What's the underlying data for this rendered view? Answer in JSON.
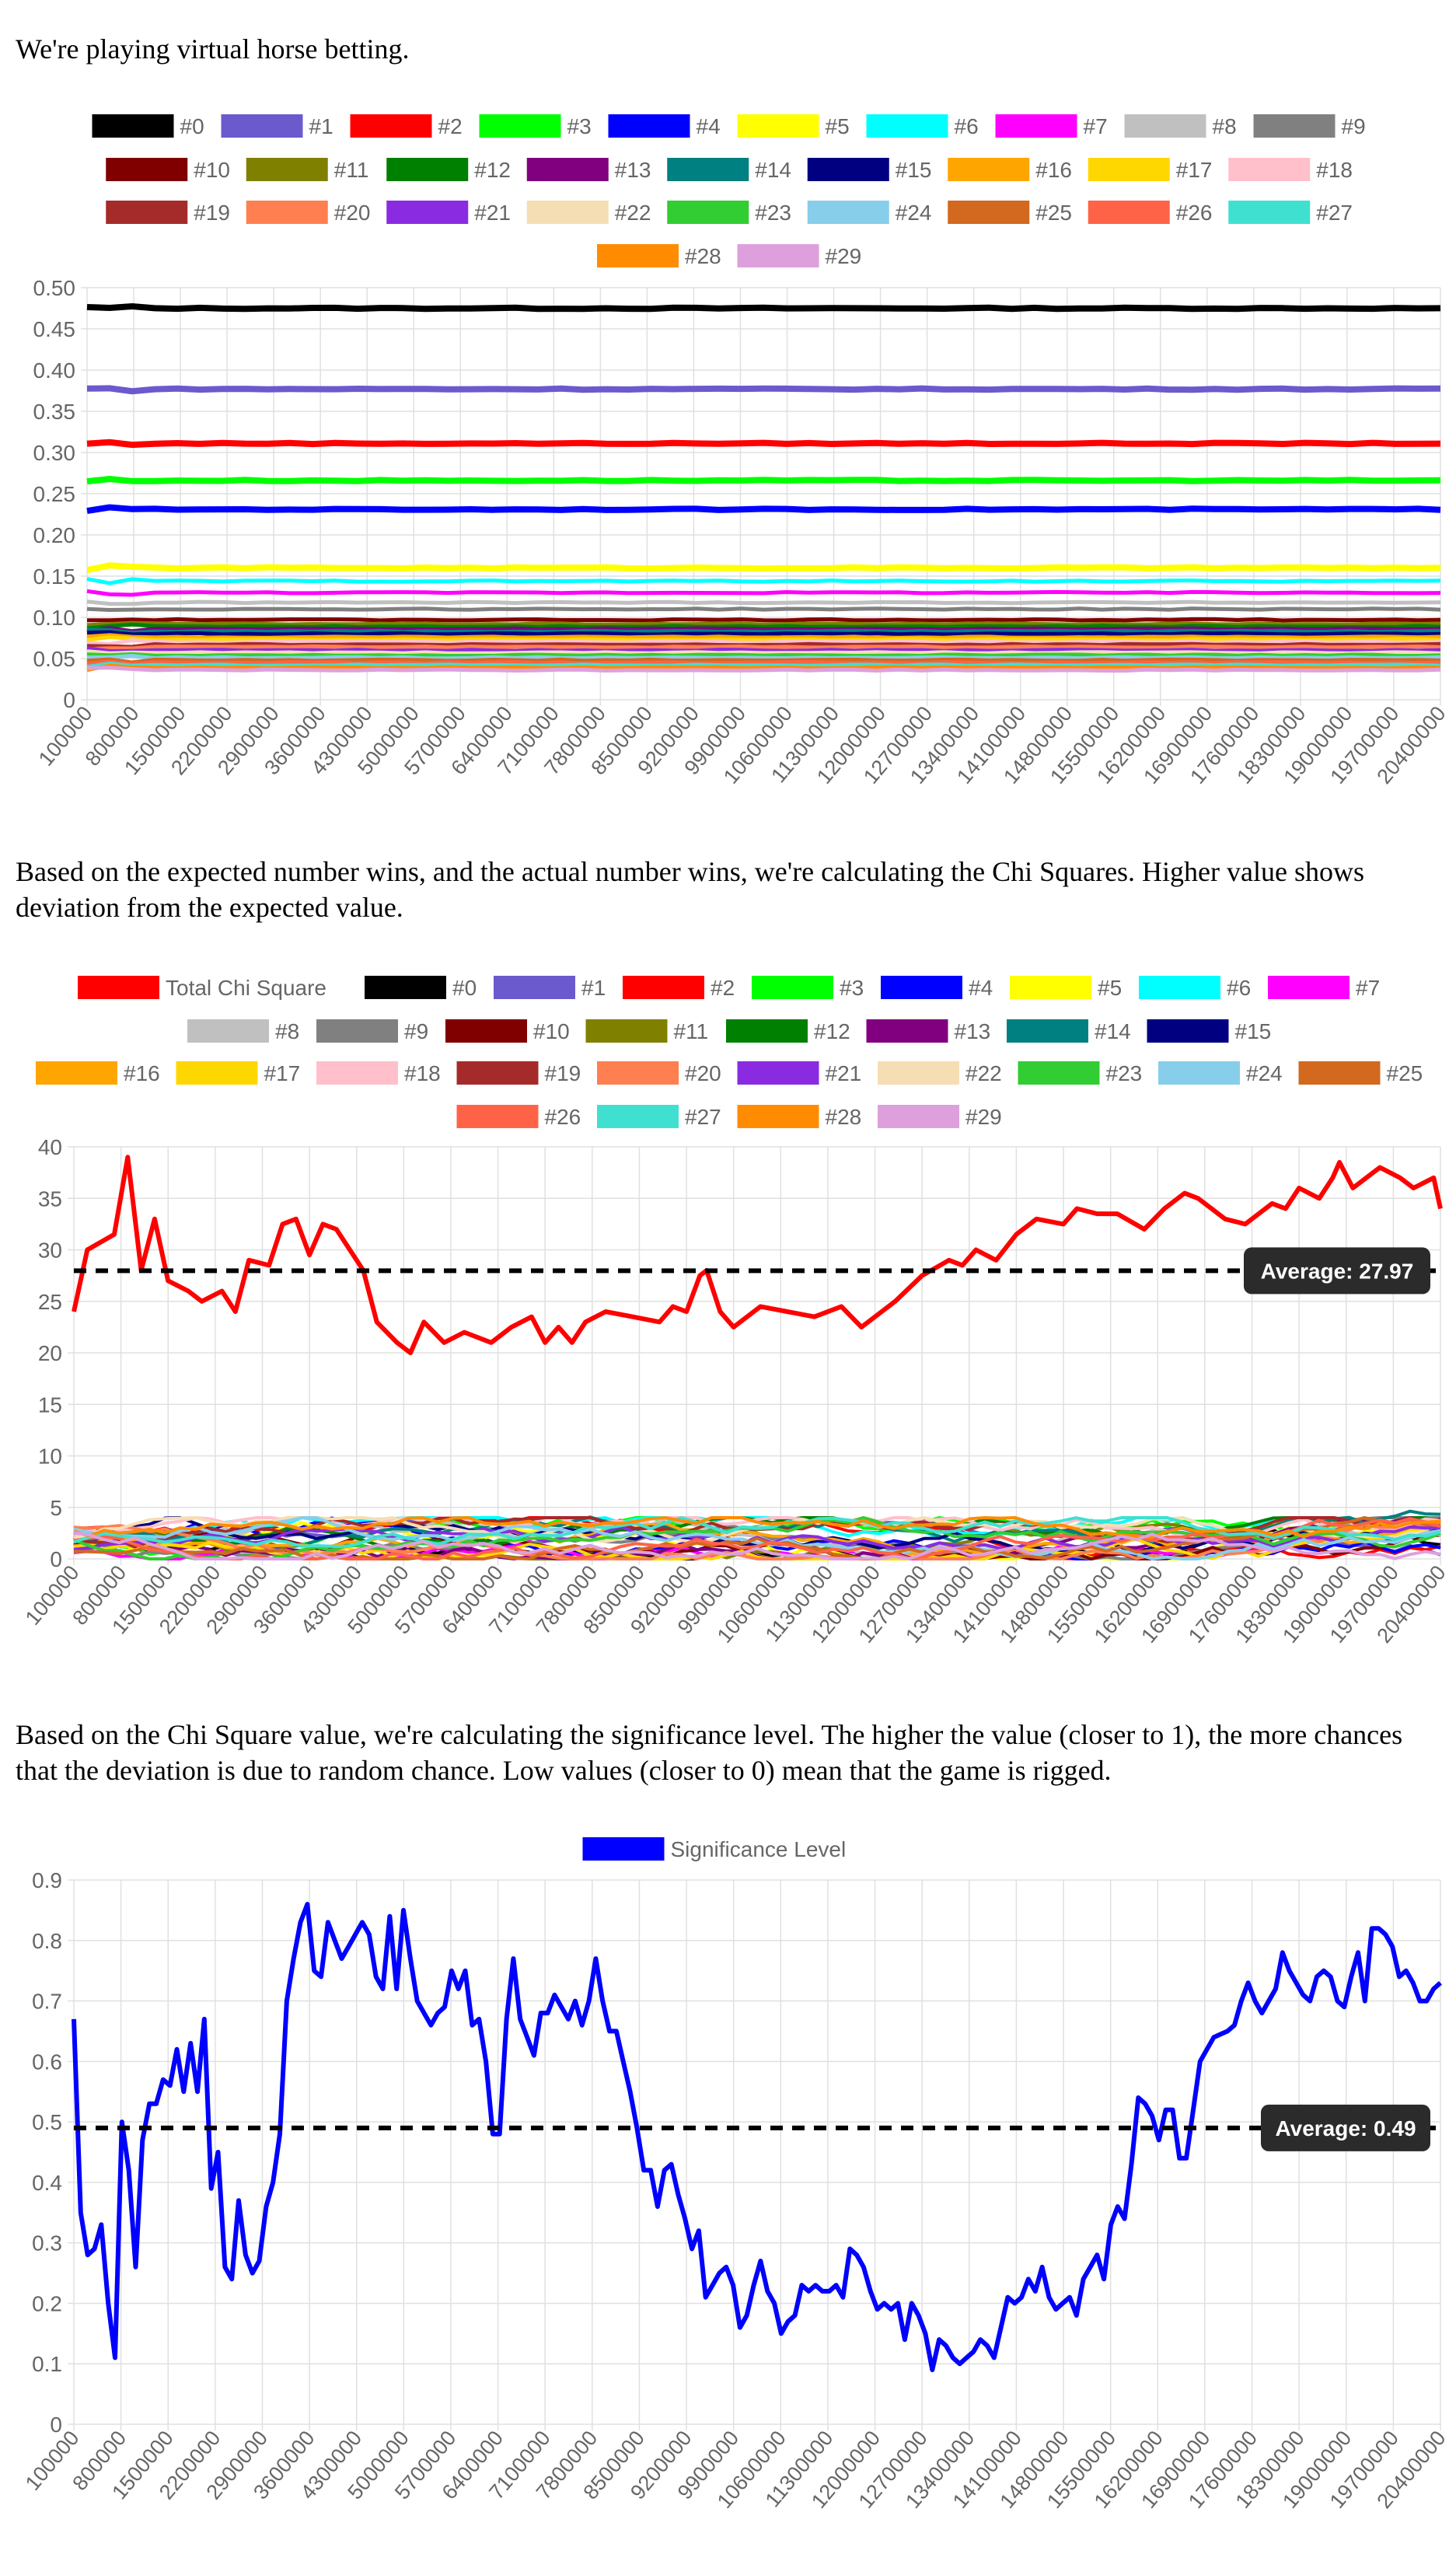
{
  "intro_text": "We're playing virtual horse betting.",
  "chi_text": "Based on the expected number wins, and the actual number wins, we're calculating the Chi Squares. Higher value shows deviation from the expected value.",
  "sig_text": "Based on the Chi Square value, we're calculating the significance level. The higher the value (closer to 1), the more chances that the deviation is due to random chance. Low values (closer to 0) mean that the game is rigged.",
  "horses": [
    {
      "name": "#0",
      "color": "#000000"
    },
    {
      "name": "#1",
      "color": "#6a5acd"
    },
    {
      "name": "#2",
      "color": "#ff0000"
    },
    {
      "name": "#3",
      "color": "#00ff00"
    },
    {
      "name": "#4",
      "color": "#0000ff"
    },
    {
      "name": "#5",
      "color": "#ffff00"
    },
    {
      "name": "#6",
      "color": "#00ffff"
    },
    {
      "name": "#7",
      "color": "#ff00ff"
    },
    {
      "name": "#8",
      "color": "#c0c0c0"
    },
    {
      "name": "#9",
      "color": "#808080"
    },
    {
      "name": "#10",
      "color": "#800000"
    },
    {
      "name": "#11",
      "color": "#808000"
    },
    {
      "name": "#12",
      "color": "#008000"
    },
    {
      "name": "#13",
      "color": "#800080"
    },
    {
      "name": "#14",
      "color": "#008080"
    },
    {
      "name": "#15",
      "color": "#000080"
    },
    {
      "name": "#16",
      "color": "#ffa500"
    },
    {
      "name": "#17",
      "color": "#ffd700"
    },
    {
      "name": "#18",
      "color": "#ffc0cb"
    },
    {
      "name": "#19",
      "color": "#a52a2a"
    },
    {
      "name": "#20",
      "color": "#ff7f50"
    },
    {
      "name": "#21",
      "color": "#8a2be2"
    },
    {
      "name": "#22",
      "color": "#f5deb3"
    },
    {
      "name": "#23",
      "color": "#32cd32"
    },
    {
      "name": "#24",
      "color": "#87ceeb"
    },
    {
      "name": "#25",
      "color": "#d2691e"
    },
    {
      "name": "#26",
      "color": "#ff6347"
    },
    {
      "name": "#27",
      "color": "#40e0d0"
    },
    {
      "name": "#28",
      "color": "#ff8c00"
    },
    {
      "name": "#29",
      "color": "#dda0dd"
    }
  ],
  "x_ticks": [
    "100000",
    "800000",
    "1500000",
    "2200000",
    "2900000",
    "3600000",
    "4300000",
    "5000000",
    "5700000",
    "6400000",
    "7100000",
    "7800000",
    "8500000",
    "9200000",
    "9900000",
    "10600000",
    "11300000",
    "12000000",
    "12700000",
    "13400000",
    "14100000",
    "14800000",
    "15500000",
    "16200000",
    "16900000",
    "17600000",
    "18300000",
    "19000000",
    "19700000",
    "20400000"
  ],
  "chart_data": [
    {
      "type": "line",
      "x_range": [
        100000,
        20400000
      ],
      "ylim": [
        0,
        0.5
      ],
      "y_ticks": [
        "0",
        "0.05",
        "0.10",
        "0.15",
        "0.20",
        "0.25",
        "0.30",
        "0.35",
        "0.40",
        "0.45",
        "0.50"
      ],
      "grid": true,
      "legend": "top",
      "series_levels": [
        0.475,
        0.377,
        0.311,
        0.266,
        0.231,
        0.16,
        0.144,
        0.13,
        0.118,
        0.11,
        0.097,
        0.092,
        0.089,
        0.086,
        0.083,
        0.08,
        0.076,
        0.073,
        0.07,
        0.067,
        0.064,
        0.06,
        0.057,
        0.054,
        0.051,
        0.048,
        0.045,
        0.042,
        0.039,
        0.036
      ]
    },
    {
      "type": "line",
      "x_range": [
        100000,
        20400000
      ],
      "ylim": [
        0,
        40
      ],
      "y_ticks": [
        "0",
        "5",
        "10",
        "15",
        "20",
        "25",
        "30",
        "35",
        "40"
      ],
      "grid": true,
      "legend": "top",
      "total_series": {
        "name": "Total Chi Square",
        "color": "#ff0000",
        "points": [
          [
            100000,
            24
          ],
          [
            300000,
            30
          ],
          [
            700000,
            31.5
          ],
          [
            900000,
            39
          ],
          [
            1100000,
            28
          ],
          [
            1300000,
            33
          ],
          [
            1500000,
            27
          ],
          [
            1800000,
            26
          ],
          [
            2000000,
            25
          ],
          [
            2300000,
            26
          ],
          [
            2500000,
            24
          ],
          [
            2700000,
            29
          ],
          [
            3000000,
            28.5
          ],
          [
            3200000,
            32.5
          ],
          [
            3400000,
            33
          ],
          [
            3600000,
            29.5
          ],
          [
            3800000,
            32.5
          ],
          [
            4000000,
            32
          ],
          [
            4400000,
            28
          ],
          [
            4600000,
            23
          ],
          [
            4900000,
            21
          ],
          [
            5100000,
            20
          ],
          [
            5300000,
            23
          ],
          [
            5600000,
            21
          ],
          [
            5900000,
            22
          ],
          [
            6300000,
            21
          ],
          [
            6600000,
            22.5
          ],
          [
            6900000,
            23.5
          ],
          [
            7100000,
            21
          ],
          [
            7300000,
            22.5
          ],
          [
            7500000,
            21
          ],
          [
            7700000,
            23
          ],
          [
            8000000,
            24
          ],
          [
            8400000,
            23.5
          ],
          [
            8800000,
            23
          ],
          [
            9000000,
            24.5
          ],
          [
            9200000,
            24
          ],
          [
            9400000,
            27.5
          ],
          [
            9500000,
            28
          ],
          [
            9700000,
            24
          ],
          [
            9900000,
            22.5
          ],
          [
            10300000,
            24.5
          ],
          [
            10700000,
            24
          ],
          [
            11100000,
            23.5
          ],
          [
            11500000,
            24.5
          ],
          [
            11800000,
            22.5
          ],
          [
            12300000,
            25
          ],
          [
            12700000,
            27.5
          ],
          [
            13100000,
            29
          ],
          [
            13300000,
            28.5
          ],
          [
            13500000,
            30
          ],
          [
            13800000,
            29
          ],
          [
            14100000,
            31.5
          ],
          [
            14400000,
            33
          ],
          [
            14800000,
            32.5
          ],
          [
            15000000,
            34
          ],
          [
            15300000,
            33.5
          ],
          [
            15600000,
            33.5
          ],
          [
            16000000,
            32
          ],
          [
            16300000,
            34
          ],
          [
            16600000,
            35.5
          ],
          [
            16800000,
            35
          ],
          [
            17200000,
            33
          ],
          [
            17500000,
            32.5
          ],
          [
            17900000,
            34.5
          ],
          [
            18100000,
            34
          ],
          [
            18300000,
            36
          ],
          [
            18600000,
            35
          ],
          [
            18800000,
            37
          ],
          [
            18900000,
            38.5
          ],
          [
            19100000,
            36
          ],
          [
            19300000,
            37
          ],
          [
            19500000,
            38
          ],
          [
            19800000,
            37
          ],
          [
            20000000,
            36
          ],
          [
            20300000,
            37
          ],
          [
            20400000,
            34
          ]
        ],
        "note": "approximate trace"
      },
      "average": {
        "label": "Average: 27.97",
        "value": 27.97
      }
    },
    {
      "type": "line",
      "x_range": [
        100000,
        20400000
      ],
      "ylim": [
        0,
        0.9
      ],
      "y_ticks": [
        "0",
        "0.1",
        "0.2",
        "0.3",
        "0.4",
        "0.5",
        "0.6",
        "0.7",
        "0.8",
        "0.9"
      ],
      "grid": true,
      "legend": "top",
      "series": {
        "name": "Significance Level",
        "color": "#0000ff"
      },
      "values": [
        0.67,
        0.35,
        0.28,
        0.29,
        0.33,
        0.2,
        0.11,
        0.5,
        0.42,
        0.26,
        0.47,
        0.53,
        0.53,
        0.57,
        0.56,
        0.62,
        0.55,
        0.63,
        0.55,
        0.67,
        0.39,
        0.45,
        0.26,
        0.24,
        0.37,
        0.28,
        0.25,
        0.27,
        0.36,
        0.4,
        0.48,
        0.7,
        0.77,
        0.83,
        0.86,
        0.75,
        0.74,
        0.83,
        0.8,
        0.77,
        0.79,
        0.81,
        0.83,
        0.81,
        0.74,
        0.72,
        0.84,
        0.72,
        0.85,
        0.77,
        0.7,
        0.68,
        0.66,
        0.68,
        0.69,
        0.75,
        0.72,
        0.75,
        0.66,
        0.67,
        0.6,
        0.48,
        0.48,
        0.67,
        0.77,
        0.67,
        0.64,
        0.61,
        0.68,
        0.68,
        0.71,
        0.69,
        0.67,
        0.7,
        0.66,
        0.7,
        0.77,
        0.7,
        0.65,
        0.65,
        0.6,
        0.55,
        0.49,
        0.42,
        0.42,
        0.36,
        0.42,
        0.43,
        0.38,
        0.34,
        0.29,
        0.32,
        0.21,
        0.23,
        0.25,
        0.26,
        0.23,
        0.16,
        0.18,
        0.23,
        0.27,
        0.22,
        0.2,
        0.15,
        0.17,
        0.18,
        0.23,
        0.22,
        0.23,
        0.22,
        0.22,
        0.23,
        0.21,
        0.29,
        0.28,
        0.26,
        0.22,
        0.19,
        0.2,
        0.19,
        0.2,
        0.14,
        0.2,
        0.18,
        0.15,
        0.09,
        0.14,
        0.13,
        0.11,
        0.1,
        0.11,
        0.12,
        0.14,
        0.13,
        0.11,
        0.16,
        0.21,
        0.2,
        0.21,
        0.24,
        0.22,
        0.26,
        0.21,
        0.19,
        0.2,
        0.21,
        0.18,
        0.24,
        0.26,
        0.28,
        0.24,
        0.33,
        0.36,
        0.34,
        0.43,
        0.54,
        0.53,
        0.51,
        0.47,
        0.52,
        0.52,
        0.44,
        0.44,
        0.52,
        0.6,
        0.62,
        0.64,
        0.645,
        0.65,
        0.66,
        0.7,
        0.73,
        0.7,
        0.68,
        0.7,
        0.72,
        0.78,
        0.75,
        0.73,
        0.71,
        0.7,
        0.74,
        0.75,
        0.74,
        0.7,
        0.69,
        0.74,
        0.78,
        0.7,
        0.82,
        0.82,
        0.81,
        0.79,
        0.74,
        0.75,
        0.73,
        0.7,
        0.7,
        0.72,
        0.73
      ],
      "average": {
        "label": "Average: 0.49",
        "value": 0.49
      }
    }
  ]
}
